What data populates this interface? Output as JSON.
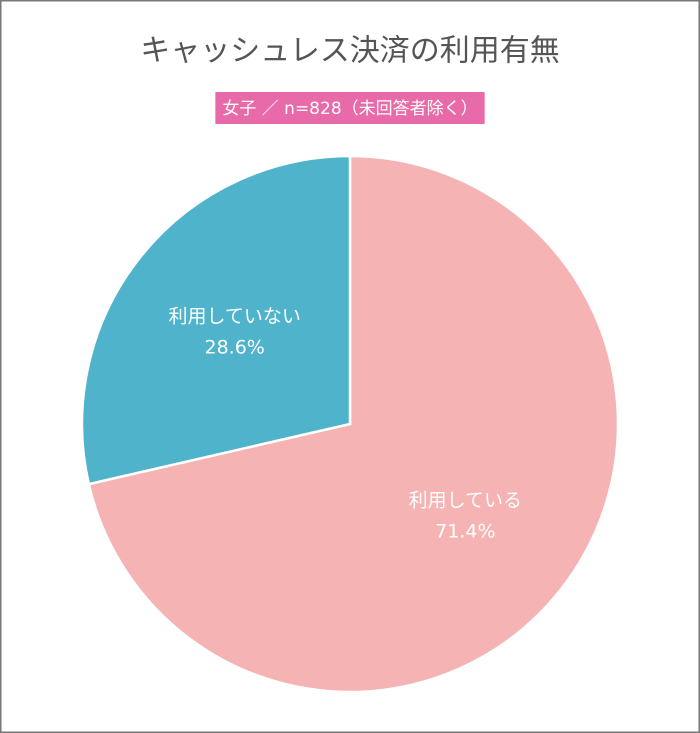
{
  "chart_data": {
    "type": "pie",
    "title": "キャッシュレス決済の利用有無",
    "subtitle": "女子 ／ n=828（未回答者除く）",
    "categories": [
      "利用している",
      "利用していない"
    ],
    "values": [
      71.4,
      28.6
    ],
    "value_labels": [
      "71.4%",
      "28.6%"
    ],
    "colors": [
      "#f5b3b3",
      "#4fb3cc"
    ],
    "subtitle_color": "#e86aa8"
  }
}
